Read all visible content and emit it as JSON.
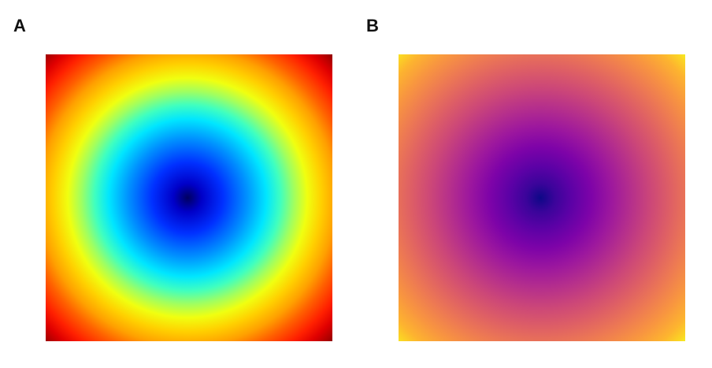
{
  "panels": {
    "a": {
      "label": "A",
      "colormap": "jet",
      "colors": [
        "#000060",
        "#0000c8",
        "#0030ff",
        "#0090ff",
        "#00e6ff",
        "#40ffbf",
        "#a0ff60",
        "#f0ff10",
        "#ffd000",
        "#ffa000",
        "#ff6000",
        "#ff2000",
        "#e00000",
        "#b00000",
        "#800000"
      ]
    },
    "b": {
      "label": "B",
      "colormap": "plasma",
      "colors": [
        "#0d0887",
        "#3a049a",
        "#5c01a6",
        "#7e03a8",
        "#9c179e",
        "#b52f8c",
        "#cc4778",
        "#de5f65",
        "#ed7953",
        "#f89540",
        "#fdb42f",
        "#fbd524",
        "#f0f921"
      ]
    }
  }
}
